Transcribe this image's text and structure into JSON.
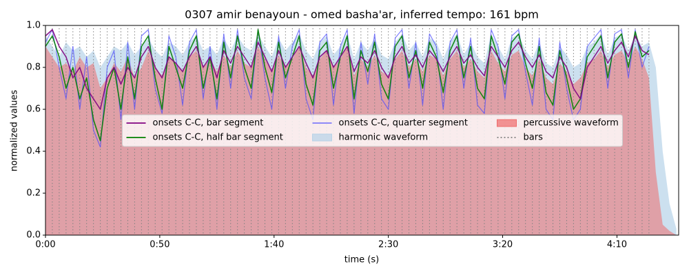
{
  "chart_data": {
    "type": "line",
    "title": "0307 amir benayoun - omed basha'ar, inferred tempo: 161 bpm",
    "x_label": "time (s)",
    "y_label": "normalized values",
    "xlim": [
      0,
      277
    ],
    "ylim": [
      0,
      1
    ],
    "xticks": [
      {
        "value": 0,
        "label": "0:00"
      },
      {
        "value": 50,
        "label": "0:50"
      },
      {
        "value": 100,
        "label": "1:40"
      },
      {
        "value": 150,
        "label": "2:30"
      },
      {
        "value": 200,
        "label": "3:20"
      },
      {
        "value": 250,
        "label": "4:10"
      }
    ],
    "yticks": [
      {
        "value": 0,
        "label": "0.0"
      },
      {
        "value": 0.2,
        "label": "0.2"
      },
      {
        "value": 0.4,
        "label": "0.4"
      },
      {
        "value": 0.6,
        "label": "0.6"
      },
      {
        "value": 0.8,
        "label": "0.8"
      },
      {
        "value": 1,
        "label": "1.0"
      }
    ],
    "legend": "center",
    "x": [
      0,
      3,
      6,
      9,
      12,
      15,
      18,
      21,
      24,
      27,
      30,
      33,
      36,
      39,
      42,
      45,
      48,
      51,
      54,
      57,
      60,
      63,
      66,
      69,
      72,
      75,
      78,
      81,
      84,
      87,
      90,
      93,
      96,
      99,
      102,
      105,
      108,
      111,
      114,
      117,
      120,
      123,
      126,
      129,
      132,
      135,
      138,
      141,
      144,
      147,
      150,
      153,
      156,
      159,
      162,
      165,
      168,
      171,
      174,
      177,
      180,
      183,
      186,
      189,
      192,
      195,
      198,
      201,
      204,
      207,
      210,
      213,
      216,
      219,
      222,
      225,
      228,
      231,
      234,
      237,
      240,
      243,
      246,
      249,
      252,
      255,
      258,
      261,
      264,
      267,
      270,
      273,
      276
    ],
    "series": [
      {
        "name": "onsets C-C, bar segment",
        "kind": "line",
        "color": "#800080",
        "values": [
          0.95,
          0.98,
          0.9,
          0.85,
          0.75,
          0.8,
          0.7,
          0.65,
          0.6,
          0.75,
          0.8,
          0.72,
          0.8,
          0.75,
          0.85,
          0.9,
          0.8,
          0.75,
          0.85,
          0.82,
          0.78,
          0.85,
          0.9,
          0.8,
          0.85,
          0.75,
          0.88,
          0.82,
          0.9,
          0.85,
          0.8,
          0.92,
          0.85,
          0.78,
          0.88,
          0.8,
          0.85,
          0.9,
          0.82,
          0.75,
          0.85,
          0.88,
          0.8,
          0.85,
          0.9,
          0.78,
          0.85,
          0.82,
          0.88,
          0.8,
          0.75,
          0.85,
          0.9,
          0.82,
          0.86,
          0.8,
          0.88,
          0.84,
          0.78,
          0.85,
          0.9,
          0.82,
          0.86,
          0.8,
          0.76,
          0.9,
          0.85,
          0.8,
          0.88,
          0.92,
          0.85,
          0.8,
          0.86,
          0.78,
          0.75,
          0.85,
          0.8,
          0.7,
          0.65,
          0.8,
          0.85,
          0.9,
          0.82,
          0.88,
          0.92,
          0.85,
          0.95,
          0.88,
          0.86,
          null,
          null,
          null,
          null
        ]
      },
      {
        "name": "onsets C-C, half bar segment",
        "kind": "line",
        "color": "#008000",
        "values": [
          0.9,
          0.95,
          0.85,
          0.7,
          0.8,
          0.65,
          0.75,
          0.55,
          0.45,
          0.7,
          0.8,
          0.6,
          0.85,
          0.65,
          0.9,
          0.95,
          0.75,
          0.6,
          0.9,
          0.8,
          0.7,
          0.88,
          0.95,
          0.7,
          0.85,
          0.65,
          0.92,
          0.75,
          0.95,
          0.8,
          0.7,
          0.98,
          0.8,
          0.68,
          0.92,
          0.75,
          0.85,
          0.95,
          0.72,
          0.62,
          0.88,
          0.92,
          0.7,
          0.85,
          0.95,
          0.65,
          0.88,
          0.78,
          0.92,
          0.72,
          0.65,
          0.9,
          0.95,
          0.75,
          0.88,
          0.7,
          0.92,
          0.85,
          0.68,
          0.88,
          0.95,
          0.75,
          0.9,
          0.7,
          0.65,
          0.95,
          0.85,
          0.72,
          0.92,
          0.96,
          0.82,
          0.7,
          0.9,
          0.68,
          0.62,
          0.88,
          0.75,
          0.6,
          0.65,
          0.85,
          0.9,
          0.95,
          0.75,
          0.92,
          0.96,
          0.8,
          0.97,
          0.85,
          0.88,
          null,
          null,
          null,
          null
        ]
      },
      {
        "name": "onsets C-C, quarter segment",
        "kind": "line",
        "color": "#4a4aff",
        "values": [
          0.92,
          0.98,
          0.8,
          0.65,
          0.9,
          0.6,
          0.85,
          0.5,
          0.42,
          0.8,
          0.88,
          0.55,
          0.92,
          0.6,
          0.95,
          0.98,
          0.7,
          0.58,
          0.95,
          0.85,
          0.62,
          0.92,
          0.98,
          0.65,
          0.9,
          0.6,
          0.96,
          0.7,
          0.98,
          0.75,
          0.65,
          0.98,
          0.75,
          0.6,
          0.95,
          0.7,
          0.9,
          0.98,
          0.65,
          0.55,
          0.92,
          0.96,
          0.62,
          0.9,
          0.98,
          0.58,
          0.92,
          0.72,
          0.96,
          0.65,
          0.6,
          0.94,
          0.98,
          0.7,
          0.92,
          0.62,
          0.96,
          0.9,
          0.6,
          0.92,
          0.98,
          0.7,
          0.94,
          0.62,
          0.58,
          0.98,
          0.9,
          0.65,
          0.95,
          0.98,
          0.78,
          0.62,
          0.94,
          0.6,
          0.55,
          0.92,
          0.7,
          0.55,
          0.6,
          0.9,
          0.94,
          0.98,
          0.7,
          0.96,
          0.98,
          0.75,
          0.98,
          0.8,
          0.9,
          null,
          null,
          null,
          null
        ]
      },
      {
        "name": "harmonic waveform",
        "kind": "area",
        "color": "#b7d3e8",
        "values": [
          0.95,
          0.9,
          0.85,
          0.92,
          0.88,
          0.9,
          0.85,
          0.88,
          0.8,
          0.85,
          0.9,
          0.88,
          0.92,
          0.86,
          0.9,
          0.94,
          0.88,
          0.85,
          0.92,
          0.9,
          0.86,
          0.92,
          0.95,
          0.88,
          0.9,
          0.86,
          0.94,
          0.88,
          0.95,
          0.9,
          0.88,
          0.96,
          0.9,
          0.85,
          0.94,
          0.88,
          0.92,
          0.96,
          0.88,
          0.84,
          0.92,
          0.95,
          0.86,
          0.9,
          0.96,
          0.84,
          0.92,
          0.88,
          0.94,
          0.86,
          0.84,
          0.92,
          0.96,
          0.88,
          0.92,
          0.85,
          0.94,
          0.92,
          0.84,
          0.92,
          0.96,
          0.86,
          0.92,
          0.85,
          0.82,
          0.96,
          0.9,
          0.84,
          0.94,
          0.96,
          0.88,
          0.84,
          0.92,
          0.82,
          0.8,
          0.9,
          0.86,
          0.8,
          0.82,
          0.9,
          0.92,
          0.96,
          0.86,
          0.94,
          0.96,
          0.88,
          0.96,
          0.9,
          0.92,
          0.8,
          0.4,
          0.15,
          0.03
        ]
      },
      {
        "name": "percussive waveform",
        "kind": "area",
        "color": "#ef6b6b",
        "values": [
          0.9,
          0.85,
          0.8,
          0.82,
          0.78,
          0.85,
          0.8,
          0.82,
          0.7,
          0.75,
          0.82,
          0.78,
          0.85,
          0.75,
          0.8,
          0.88,
          0.8,
          0.76,
          0.85,
          0.82,
          0.78,
          0.85,
          0.88,
          0.8,
          0.84,
          0.78,
          0.86,
          0.8,
          0.88,
          0.82,
          0.8,
          0.9,
          0.84,
          0.78,
          0.86,
          0.8,
          0.84,
          0.9,
          0.8,
          0.76,
          0.84,
          0.88,
          0.8,
          0.84,
          0.9,
          0.76,
          0.84,
          0.8,
          0.86,
          0.78,
          0.76,
          0.84,
          0.88,
          0.8,
          0.84,
          0.78,
          0.86,
          0.84,
          0.76,
          0.84,
          0.88,
          0.8,
          0.84,
          0.78,
          0.75,
          0.88,
          0.82,
          0.78,
          0.86,
          0.88,
          0.8,
          0.76,
          0.84,
          0.75,
          0.72,
          0.82,
          0.78,
          0.72,
          0.75,
          0.82,
          0.84,
          0.88,
          0.8,
          0.86,
          0.88,
          0.82,
          0.9,
          0.84,
          0.75,
          0.3,
          0.05,
          0.02,
          0
        ]
      },
      {
        "name": "bars",
        "kind": "vlines",
        "color": "#808080",
        "positions": [
          0,
          3,
          6,
          9,
          12,
          15,
          18,
          21,
          24,
          27,
          30,
          33,
          36,
          39,
          42,
          45,
          48,
          51,
          54,
          57,
          60,
          63,
          66,
          69,
          72,
          75,
          78,
          81,
          84,
          87,
          90,
          93,
          96,
          99,
          102,
          105,
          108,
          111,
          114,
          117,
          120,
          123,
          126,
          129,
          132,
          135,
          138,
          141,
          144,
          147,
          150,
          153,
          156,
          159,
          162,
          165,
          168,
          171,
          174,
          177,
          180,
          183,
          186,
          189,
          192,
          195,
          198,
          201,
          204,
          207,
          210,
          213,
          216,
          219,
          222,
          225,
          228,
          231,
          234,
          237,
          240,
          243,
          246,
          249,
          252,
          255,
          258,
          261,
          264
        ]
      }
    ]
  }
}
